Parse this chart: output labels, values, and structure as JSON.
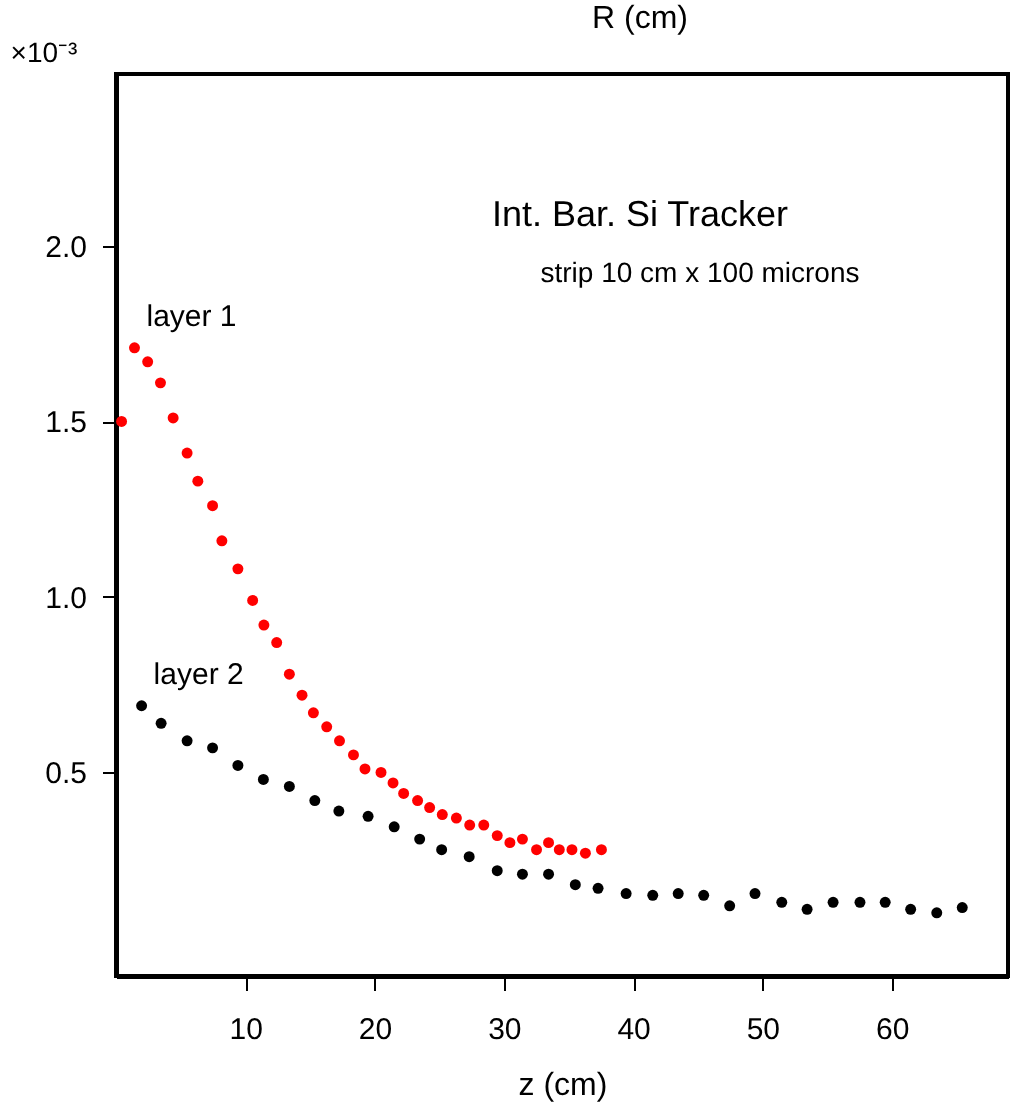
{
  "chart_data": {
    "type": "scatter",
    "xlabel": "z (cm)",
    "annotations": [
      "R (cm)",
      "×10⁻³",
      "Int. Bar. Si Tracker",
      "strip 10 cm x 100 microns"
    ],
    "xlim": [
      0,
      69
    ],
    "xticks": [
      10,
      20,
      30,
      40,
      50,
      60
    ],
    "ylim": [
      -0.08,
      2.49
    ],
    "yticks": [
      0.5,
      {
        "value": 1,
        "label": "1.0"
      },
      1.5,
      {
        "value": 2,
        "label": "2.0"
      }
    ],
    "grid": false,
    "legend": false,
    "marker": "circle",
    "series": [
      {
        "name": "layer 1",
        "color": "#ff0000",
        "x": [
          0.43,
          1.43,
          2.45,
          3.44,
          4.42,
          5.5,
          6.33,
          7.47,
          8.19,
          9.43,
          10.57,
          11.44,
          12.43,
          13.41,
          14.39,
          15.27,
          16.3,
          17.29,
          18.37,
          19.26,
          20.5,
          21.43,
          22.25,
          23.33,
          24.26,
          25.24,
          26.33,
          27.36,
          28.45,
          29.49,
          30.47,
          31.44,
          32.53,
          33.46,
          34.29,
          35.27,
          36.31,
          37.55
        ],
        "values": [
          1.5,
          1.71,
          1.67,
          1.61,
          1.51,
          1.41,
          1.33,
          1.26,
          1.16,
          1.08,
          0.99,
          0.92,
          0.87,
          0.78,
          0.72,
          0.67,
          0.63,
          0.59,
          0.55,
          0.51,
          0.5,
          0.47,
          0.44,
          0.42,
          0.4,
          0.38,
          0.37,
          0.35,
          0.35,
          0.32,
          0.3,
          0.31,
          0.28,
          0.3,
          0.28,
          0.28,
          0.27,
          0.28
        ]
      },
      {
        "name": "layer 2",
        "color": "#000000",
        "x": [
          1.98,
          3.49,
          5.5,
          7.47,
          9.43,
          11.4,
          13.41,
          15.38,
          17.24,
          19.5,
          21.52,
          23.49,
          25.19,
          27.32,
          29.49,
          31.44,
          33.46,
          35.53,
          37.29,
          39.46,
          41.52,
          43.49,
          45.46,
          47.47,
          49.43,
          51.5,
          53.46,
          55.47,
          57.55,
          59.5,
          61.47,
          63.49,
          65.46
        ],
        "values": [
          0.69,
          0.64,
          0.59,
          0.57,
          0.52,
          0.48,
          0.46,
          0.42,
          0.39,
          0.375,
          0.345,
          0.31,
          0.28,
          0.26,
          0.22,
          0.21,
          0.21,
          0.18,
          0.17,
          0.155,
          0.15,
          0.155,
          0.15,
          0.12,
          0.155,
          0.13,
          0.11,
          0.13,
          0.13,
          0.13,
          0.11,
          0.1,
          0.115
        ]
      }
    ]
  }
}
